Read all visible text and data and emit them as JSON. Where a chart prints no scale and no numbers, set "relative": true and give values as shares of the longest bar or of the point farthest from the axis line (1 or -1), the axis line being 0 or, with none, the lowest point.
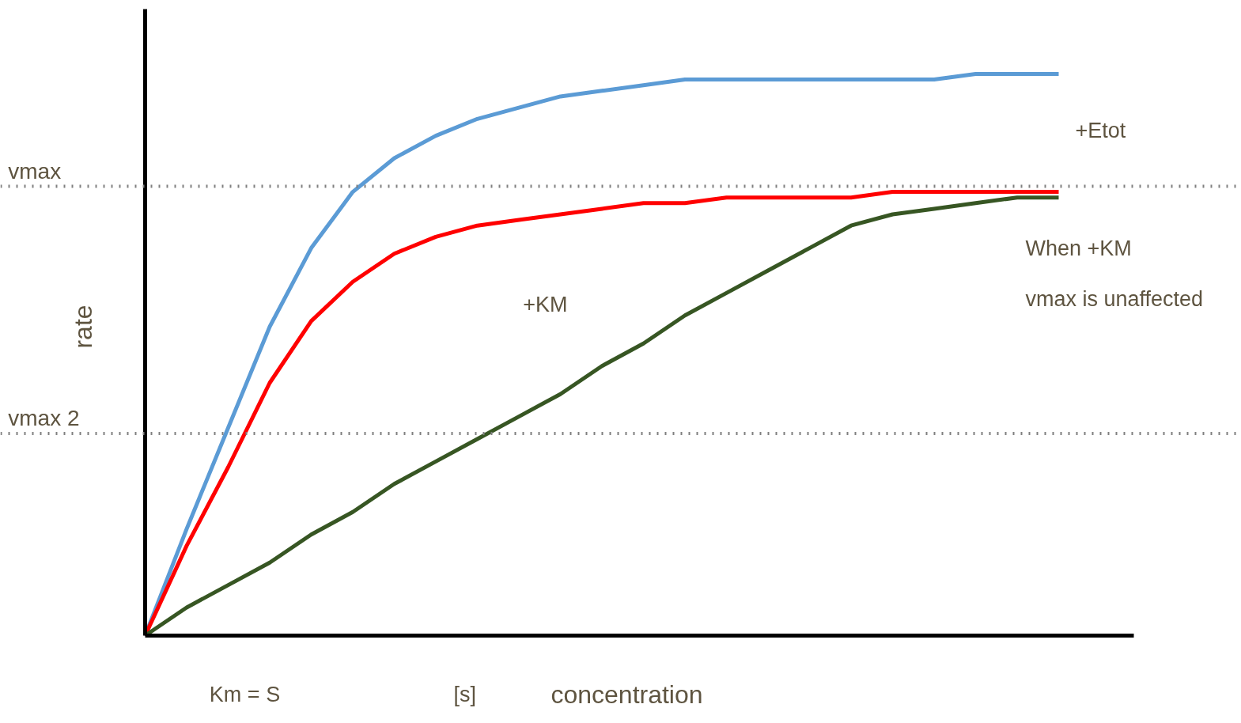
{
  "chart_data": {
    "type": "line",
    "relative": true,
    "xlabel": "concentration",
    "ylabel": "rate",
    "categories": [
      null,
      null,
      null,
      null,
      null,
      null,
      null,
      null,
      null,
      null,
      null,
      null,
      null,
      null,
      null,
      null,
      null,
      null,
      null,
      null,
      null,
      null,
      null
    ],
    "series": [
      {
        "color": "#5b9bd5",
        "values": [
          0,
          0.19,
          0.37,
          0.55,
          0.69,
          0.79,
          0.85,
          0.89,
          0.92,
          0.94,
          0.96,
          0.97,
          0.98,
          0.99,
          0.99,
          0.99,
          0.99,
          0.99,
          0.99,
          0.99,
          1.0,
          1.0,
          1.0
        ]
      },
      {
        "color": "#ff0000",
        "values": [
          0,
          0.16,
          0.3,
          0.45,
          0.56,
          0.63,
          0.68,
          0.71,
          0.73,
          0.74,
          0.75,
          0.76,
          0.77,
          0.77,
          0.78,
          0.78,
          0.78,
          0.78,
          0.79,
          0.79,
          0.79,
          0.79,
          0.79
        ]
      },
      {
        "color": "#375623",
        "values": [
          0,
          0.05,
          0.09,
          0.13,
          0.18,
          0.22,
          0.27,
          0.31,
          0.35,
          0.39,
          0.43,
          0.48,
          0.52,
          0.57,
          0.61,
          0.65,
          0.69,
          0.73,
          0.75,
          0.76,
          0.77,
          0.78,
          0.78
        ]
      }
    ],
    "ref_lines": [
      {
        "axis": "y",
        "value": 0.8,
        "label": "vmax",
        "color": "#808080",
        "line_style": "dotted"
      },
      {
        "axis": "y",
        "value": 0.36,
        "label": "vmax 2",
        "color": "#808080",
        "line_style": "dotted"
      }
    ],
    "annotations": [
      "+Etot",
      "+KM",
      "When +KM",
      "vmax is unaffected",
      "Km = S",
      "[s]"
    ],
    "grid": false,
    "legend": false,
    "marker": "none",
    "line_style": "solid"
  }
}
